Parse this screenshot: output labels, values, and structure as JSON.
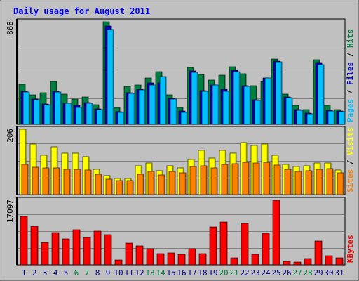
{
  "title": "Daily usage for August 2011",
  "colors": {
    "background": "#c0c0c0",
    "title": "#0000ff",
    "hits": "#008040",
    "files": "#0000c0",
    "pages": "#00c0ff",
    "visits": "#ffff00",
    "sites": "#ff8000",
    "kbytes": "#ff0000",
    "weekend_day": "#008040",
    "weekday": "#000080"
  },
  "chart_data": [
    {
      "type": "bar",
      "name": "hits-files-pages",
      "max_label": "868",
      "ylim": [
        0,
        868
      ],
      "categories": [
        "1",
        "2",
        "3",
        "4",
        "5",
        "6",
        "7",
        "8",
        "9",
        "10",
        "11",
        "12",
        "13",
        "14",
        "15",
        "16",
        "17",
        "18",
        "19",
        "20",
        "21",
        "22",
        "23",
        "24",
        "25",
        "26",
        "27",
        "28",
        "29",
        "30",
        "31"
      ],
      "legend": [
        "Pages",
        "Files",
        "Hits"
      ],
      "series": [
        {
          "name": "Hits",
          "color": "#008040",
          "values": [
            340,
            250,
            265,
            365,
            255,
            215,
            230,
            165,
            868,
            140,
            320,
            335,
            395,
            445,
            250,
            140,
            480,
            425,
            375,
            415,
            485,
            430,
            325,
            365,
            550,
            255,
            160,
            125,
            545,
            160,
            125
          ]
        },
        {
          "name": "Files",
          "color": "#0000c0",
          "values": [
            280,
            215,
            170,
            280,
            180,
            160,
            185,
            130,
            835,
            105,
            265,
            300,
            350,
            350,
            220,
            110,
            450,
            285,
            335,
            295,
            455,
            325,
            210,
            390,
            535,
            230,
            125,
            95,
            525,
            120,
            110
          ]
        },
        {
          "name": "Pages",
          "color": "#00c0ff",
          "values": [
            275,
            210,
            165,
            275,
            180,
            145,
            180,
            125,
            800,
            100,
            260,
            290,
            335,
            405,
            215,
            100,
            440,
            280,
            330,
            280,
            445,
            320,
            200,
            390,
            530,
            225,
            120,
            90,
            505,
            115,
            105
          ]
        }
      ]
    },
    {
      "type": "bar",
      "name": "visits-sites",
      "max_label": "206",
      "ylim": [
        0,
        206
      ],
      "categories": [
        "1",
        "2",
        "3",
        "4",
        "5",
        "6",
        "7",
        "8",
        "9",
        "10",
        "11",
        "12",
        "13",
        "14",
        "15",
        "16",
        "17",
        "18",
        "19",
        "20",
        "21",
        "22",
        "23",
        "24",
        "25",
        "26",
        "27",
        "28",
        "29",
        "30",
        "31"
      ],
      "legend": [
        "Sites",
        "Visits"
      ],
      "series": [
        {
          "name": "Visits",
          "color": "#ffff00",
          "values": [
            206,
            160,
            125,
            150,
            130,
            130,
            120,
            80,
            60,
            50,
            50,
            90,
            100,
            75,
            90,
            85,
            110,
            140,
            115,
            140,
            130,
            165,
            155,
            160,
            125,
            95,
            88,
            90,
            100,
            100,
            77
          ]
        },
        {
          "name": "Sites",
          "color": "#ff8000",
          "values": [
            95,
            87,
            85,
            85,
            80,
            80,
            78,
            65,
            48,
            45,
            45,
            65,
            72,
            62,
            72,
            68,
            88,
            90,
            85,
            95,
            98,
            102,
            100,
            102,
            92,
            80,
            72,
            75,
            80,
            82,
            68
          ]
        }
      ]
    },
    {
      "type": "bar",
      "name": "kbytes",
      "max_label": "17097",
      "ylim": [
        0,
        17097
      ],
      "categories": [
        "1",
        "2",
        "3",
        "4",
        "5",
        "6",
        "7",
        "8",
        "9",
        "10",
        "11",
        "12",
        "13",
        "14",
        "15",
        "16",
        "17",
        "18",
        "19",
        "20",
        "21",
        "22",
        "23",
        "24",
        "25",
        "26",
        "27",
        "28",
        "29",
        "30",
        "31"
      ],
      "legend": [
        "KBytes"
      ],
      "series": [
        {
          "name": "KBytes",
          "color": "#ff0000",
          "values": [
            12870,
            10280,
            5940,
            8630,
            6910,
            9350,
            7160,
            8950,
            7900,
            1210,
            5760,
            4960,
            4240,
            3020,
            3190,
            2800,
            4310,
            2890,
            10010,
            11280,
            1880,
            11040,
            2870,
            8380,
            17097,
            1000,
            800,
            1620,
            6340,
            2340,
            1880
          ]
        }
      ]
    }
  ],
  "day_weekend_flags": [
    false,
    false,
    false,
    false,
    false,
    true,
    true,
    false,
    false,
    false,
    false,
    false,
    true,
    true,
    false,
    false,
    false,
    false,
    false,
    true,
    true,
    false,
    false,
    false,
    false,
    false,
    true,
    true,
    false,
    false,
    false
  ]
}
